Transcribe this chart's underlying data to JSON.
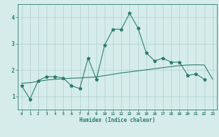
{
  "title": "",
  "xlabel": "Humidex (Indice chaleur)",
  "x_values": [
    0,
    1,
    2,
    3,
    4,
    5,
    6,
    7,
    8,
    9,
    10,
    11,
    12,
    13,
    14,
    15,
    16,
    17,
    18,
    19,
    20,
    21,
    22,
    23
  ],
  "y_main": [
    1.4,
    0.9,
    1.6,
    1.75,
    1.75,
    1.7,
    1.4,
    1.3,
    2.45,
    1.65,
    2.95,
    3.55,
    3.55,
    4.15,
    3.6,
    2.65,
    2.35,
    2.45,
    2.3,
    2.3,
    1.8,
    1.85,
    1.65,
    null
  ],
  "y_trend": [
    1.5,
    1.52,
    1.57,
    1.62,
    1.65,
    1.67,
    1.69,
    1.7,
    1.72,
    1.74,
    1.79,
    1.84,
    1.89,
    1.93,
    1.97,
    2.01,
    2.05,
    2.09,
    2.13,
    2.17,
    2.19,
    2.2,
    2.19,
    1.65
  ],
  "line_color": "#2a7a6a",
  "bg_color": "#d5ecea",
  "grid_color": "#aecfcc",
  "yticks": [
    1,
    2,
    3,
    4
  ],
  "xticks": [
    0,
    1,
    2,
    3,
    4,
    5,
    6,
    7,
    8,
    9,
    10,
    11,
    12,
    13,
    14,
    15,
    16,
    17,
    18,
    19,
    20,
    21,
    22,
    23
  ],
  "ylim": [
    0.5,
    4.5
  ],
  "xlim": [
    -0.5,
    23.5
  ]
}
